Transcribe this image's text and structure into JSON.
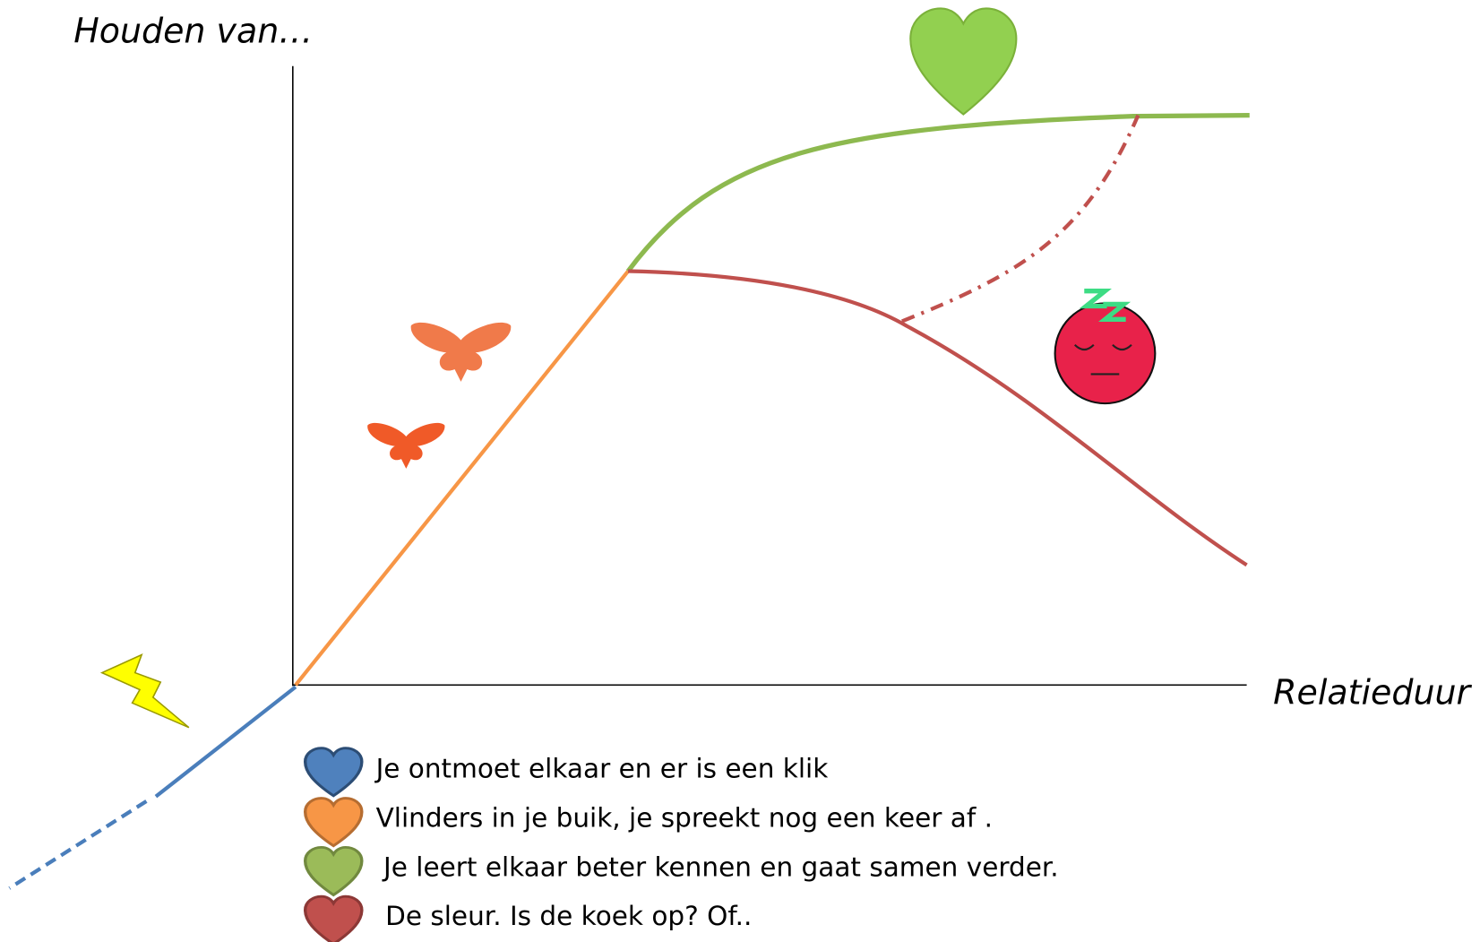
{
  "y_axis_label": "Houden van…",
  "x_axis_label": "Relatieduur",
  "legend": [
    {
      "text": "Je ontmoet elkaar en er is een klik"
    },
    {
      "text": "Vlinders in je buik, je spreekt nog een keer af ."
    },
    {
      "text": "Je leert elkaar beter kennen en gaat samen verder."
    },
    {
      "text": "De sleur. Is de koek op? Of.."
    }
  ]
}
